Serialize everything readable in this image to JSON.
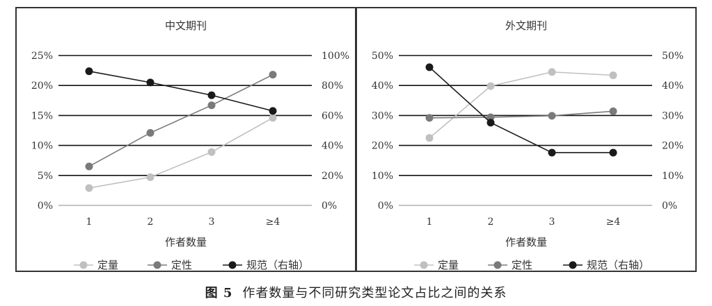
{
  "caption": {
    "figure_label": "图 5",
    "text": "作者数量与不同研究类型论文占比之间的关系"
  },
  "chart_data": [
    {
      "type": "line",
      "title": "中文期刊",
      "xlabel": "作者数量",
      "categories": [
        "1",
        "2",
        "3",
        "≥4"
      ],
      "y_left": {
        "ylim": [
          0,
          25
        ],
        "ticks": [
          "0%",
          "5%",
          "10%",
          "15%",
          "20%",
          "25%"
        ],
        "tick_values": [
          0,
          5,
          10,
          15,
          20,
          25
        ]
      },
      "y_right": {
        "ylim": [
          0,
          100
        ],
        "ticks": [
          "0%",
          "20%",
          "40%",
          "60%",
          "80%",
          "100%"
        ],
        "tick_values": [
          0,
          20,
          40,
          60,
          80,
          100
        ]
      },
      "grid": true,
      "legend_position": "bottom",
      "series": [
        {
          "name": "定量",
          "axis": "left",
          "color": "#c0c0c0",
          "values": [
            2.9,
            4.7,
            8.9,
            14.6
          ]
        },
        {
          "name": "定性",
          "axis": "left",
          "color": "#7a7a7a",
          "values": [
            6.5,
            12.1,
            16.7,
            21.8
          ]
        },
        {
          "name": "规范（右轴）",
          "axis": "right",
          "color": "#1a1a1a",
          "values": [
            89.5,
            82.0,
            73.5,
            63.0
          ]
        }
      ]
    },
    {
      "type": "line",
      "title": "外文期刊",
      "xlabel": "作者数量",
      "categories": [
        "1",
        "2",
        "3",
        "≥4"
      ],
      "y_left": {
        "ylim": [
          0,
          50
        ],
        "ticks": [
          "0%",
          "10%",
          "20%",
          "30%",
          "40%",
          "50%"
        ],
        "tick_values": [
          0,
          10,
          20,
          30,
          40,
          50
        ]
      },
      "y_right": {
        "ylim": [
          0,
          50
        ],
        "ticks": [
          "0%",
          "10%",
          "20%",
          "30%",
          "40%",
          "50%"
        ],
        "tick_values": [
          0,
          10,
          20,
          30,
          40,
          50
        ]
      },
      "grid": true,
      "legend_position": "bottom",
      "series": [
        {
          "name": "定量",
          "axis": "left",
          "color": "#c0c0c0",
          "values": [
            22.5,
            39.8,
            44.5,
            43.4
          ]
        },
        {
          "name": "定性",
          "axis": "left",
          "color": "#7a7a7a",
          "values": [
            29.2,
            29.4,
            29.9,
            31.4
          ]
        },
        {
          "name": "规范（右轴）",
          "axis": "right",
          "color": "#1a1a1a",
          "values": [
            46.1,
            27.6,
            17.6,
            17.6
          ]
        }
      ]
    }
  ]
}
